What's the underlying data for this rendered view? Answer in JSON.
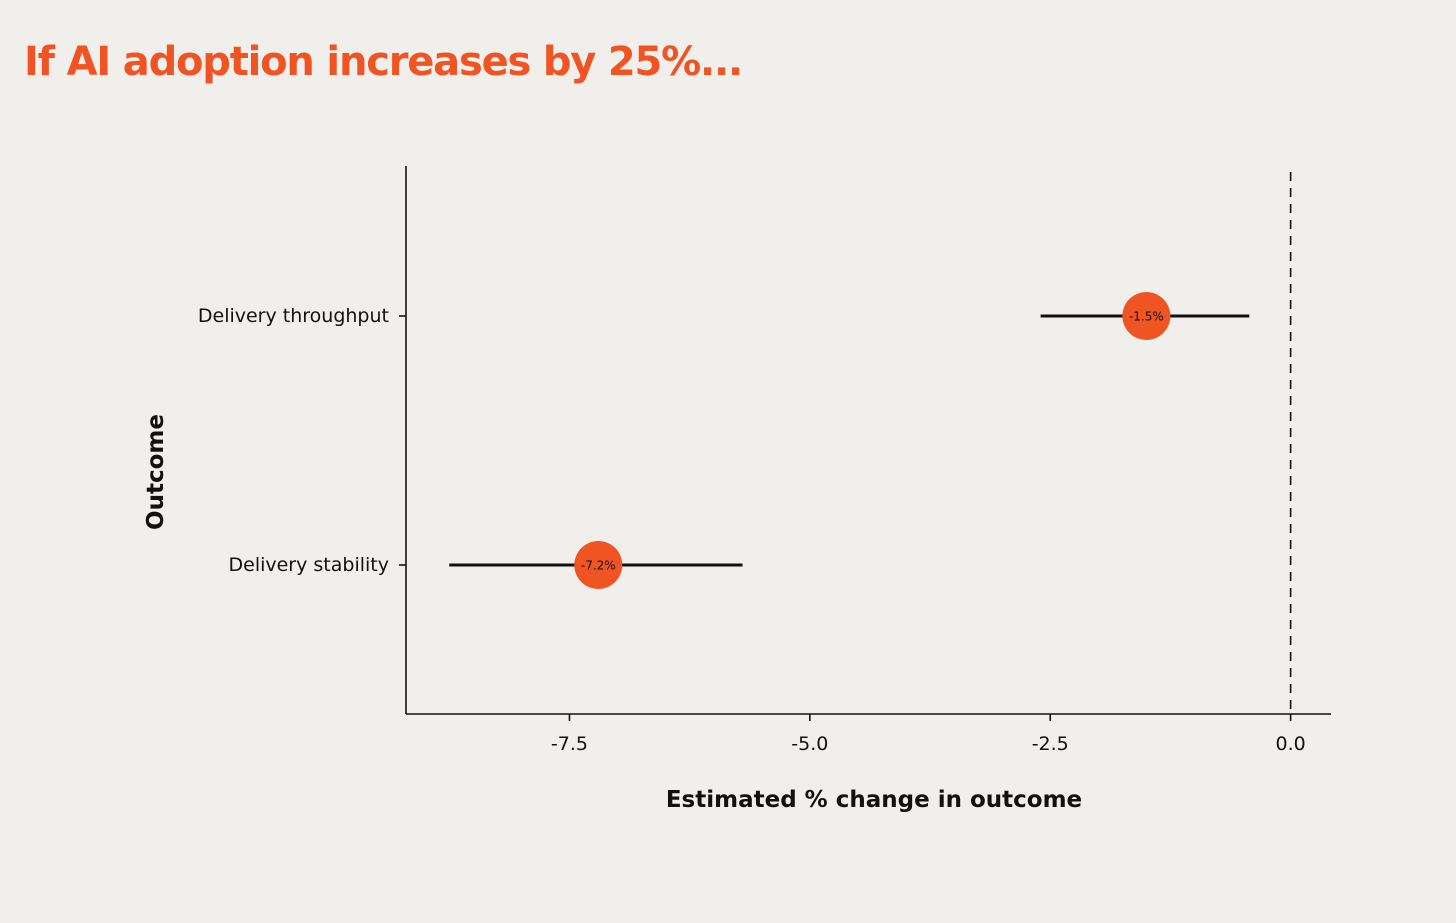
{
  "page": {
    "title": "If AI adoption increases by 25%..."
  },
  "colors": {
    "background": "#f1efeb",
    "accent": "#f05423",
    "ink": "#111111"
  },
  "chart_data": {
    "type": "scatter",
    "subtype": "point-estimate with confidence intervals",
    "xlabel": "Estimated % change in outcome",
    "ylabel": "Outcome",
    "xlim": [
      -9.2,
      0.42
    ],
    "x_ticks": [
      {
        "value": -7.5,
        "label": "-7.5"
      },
      {
        "value": -5.0,
        "label": "-5.0"
      },
      {
        "value": -2.5,
        "label": "-2.5"
      },
      {
        "value": 0.0,
        "label": "0.0"
      }
    ],
    "reference_line": {
      "x": 0.0,
      "style": "dashed"
    },
    "grid": false,
    "legend": "none",
    "categories": [
      "Delivery throughput",
      "Delivery stability"
    ],
    "series": [
      {
        "points": [
          {
            "category": "Delivery throughput",
            "estimate": -1.5,
            "ci_low": -2.6,
            "ci_high": -0.43,
            "label": "-1.5%"
          },
          {
            "category": "Delivery stability",
            "estimate": -7.2,
            "ci_low": -8.75,
            "ci_high": -5.7,
            "label": "-7.2%"
          }
        ]
      }
    ]
  }
}
